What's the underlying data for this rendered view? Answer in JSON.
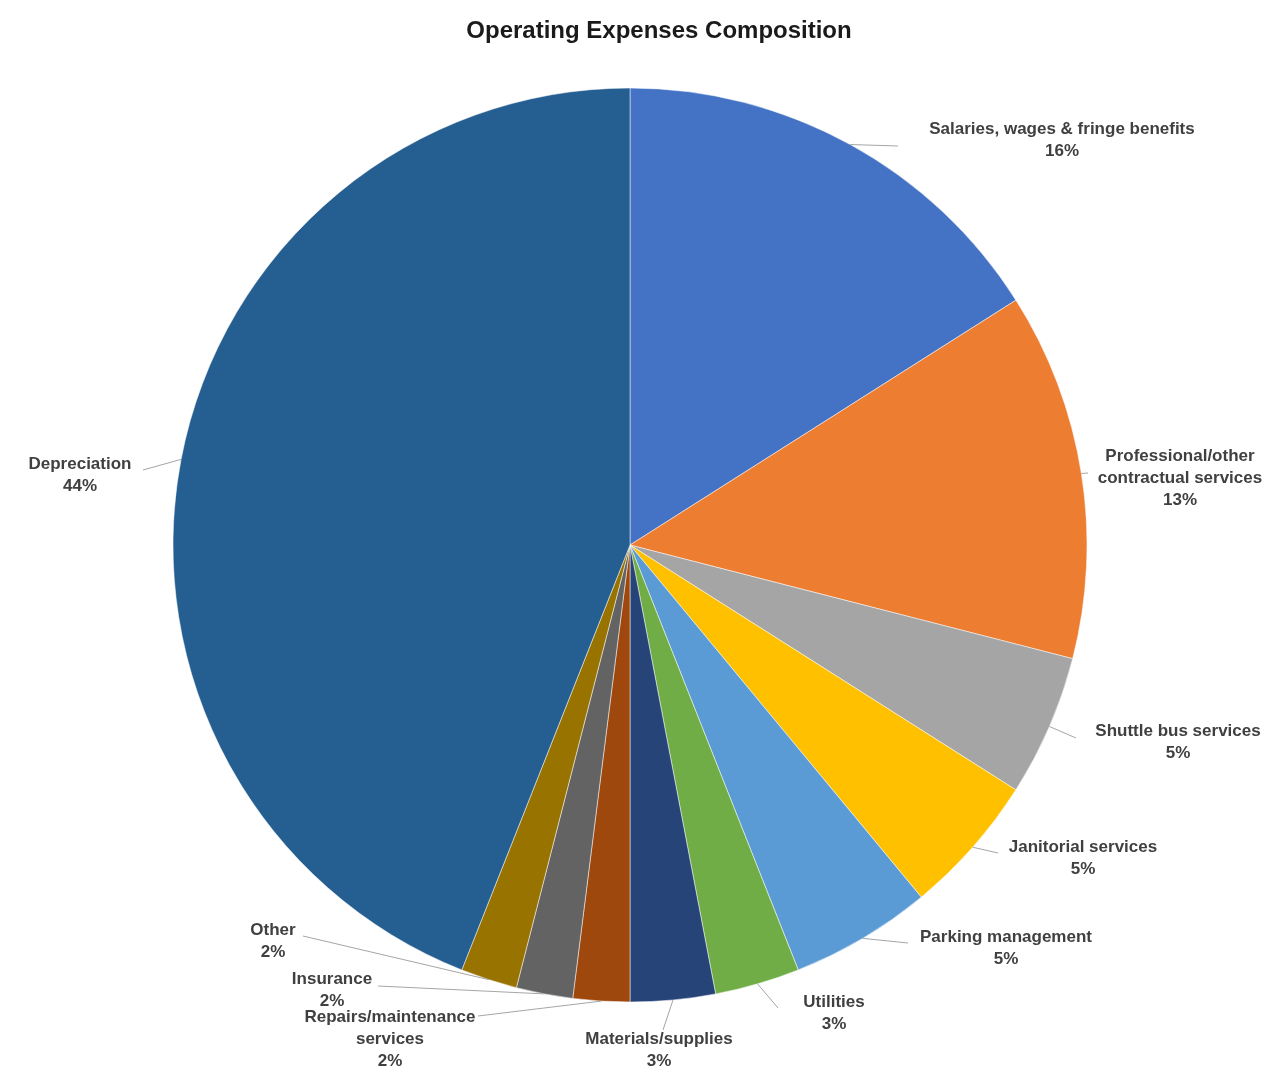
{
  "chart_data": {
    "type": "pie",
    "title": "Operating Expenses Composition",
    "categories": [
      "Salaries, wages & fringe benefits",
      "Professional/other contractual services",
      "Shuttle bus services",
      "Janitorial services",
      "Parking management",
      "Utilities",
      "Materials/supplies",
      "Repairs/maintenance services",
      "Insurance",
      "Other",
      "Depreciation"
    ],
    "values": [
      16,
      13,
      5,
      5,
      5,
      3,
      3,
      2,
      2,
      2,
      44
    ],
    "value_labels": [
      "16%",
      "13%",
      "5%",
      "5%",
      "5%",
      "3%",
      "3%",
      "2%",
      "2%",
      "2%",
      "44%"
    ],
    "colors": [
      "#4472c4",
      "#ed7d31",
      "#a5a5a5",
      "#ffc000",
      "#5b9bd5",
      "#70ad47",
      "#264478",
      "#9e480e",
      "#636363",
      "#997300",
      "#255e91"
    ]
  }
}
